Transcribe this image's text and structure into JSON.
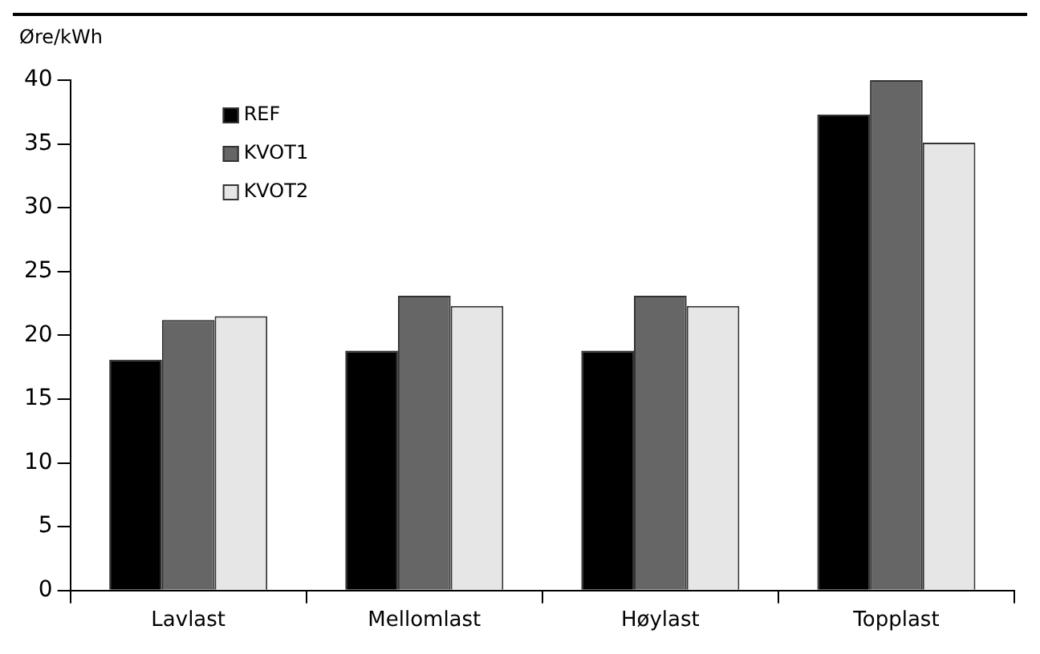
{
  "chart_data": {
    "type": "bar",
    "ylabel": "Øre/kWh",
    "categories": [
      "Lavlast",
      "Mellomlast",
      "Høylast",
      "Topplast"
    ],
    "series": [
      {
        "name": "REF",
        "color": "#000000",
        "values": [
          18.1,
          18.8,
          18.8,
          37.3
        ]
      },
      {
        "name": "KVOT1",
        "color": "#666666",
        "values": [
          21.2,
          23.1,
          23.1,
          40
        ]
      },
      {
        "name": "KVOT2",
        "color": "#e6e6e6",
        "values": [
          21.5,
          22.3,
          22.3,
          35.1
        ]
      }
    ],
    "ylim": [
      0,
      40
    ],
    "yticks": [
      0,
      5,
      10,
      15,
      20,
      25,
      30,
      35,
      40
    ],
    "grid": false,
    "legend": "top left"
  }
}
